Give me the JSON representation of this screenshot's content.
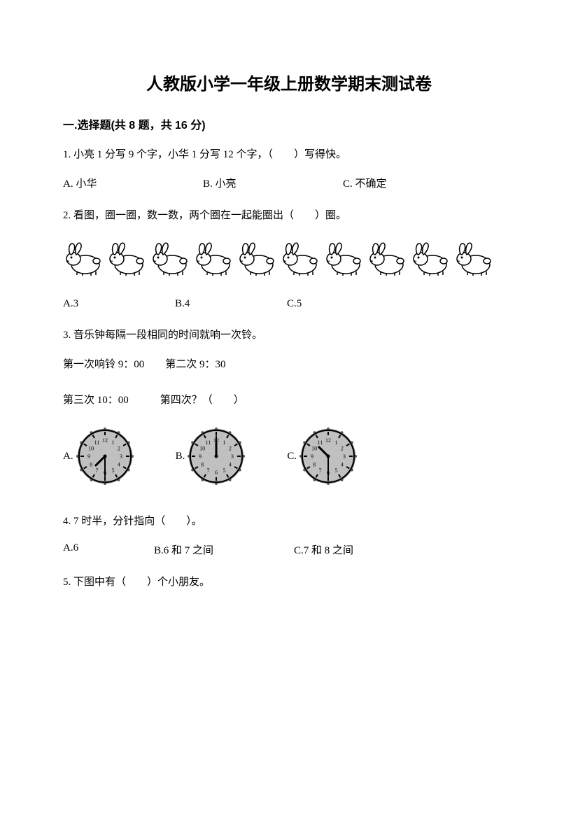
{
  "title": "人教版小学一年级上册数学期末测试卷",
  "section": {
    "label": "一.选择题(共 8 题，共 16 分)"
  },
  "q1": {
    "text": "1. 小亮 1 分写 9 个字，小华 1 分写 12 个字，（　　）写得快。",
    "a": "A. 小华",
    "b": "B. 小亮",
    "c": "C. 不确定"
  },
  "q2": {
    "text": "2. 看图，圈一圈，数一数，两个圈在一起能圈出（　　）圈。",
    "rabbit_count": 10,
    "a": "A.3",
    "b": "B.4",
    "c": "C.5"
  },
  "q3": {
    "text": "3. 音乐钟每隔一段相同的时间就响一次铃。",
    "line1": "第一次响铃 9：00　　第二次 9：30",
    "line2": "第三次 10：00　　　第四次？（　　）",
    "a": "A.",
    "b": "B.",
    "c": "C.",
    "clocks": {
      "A": {
        "hour": 7,
        "minute": 30
      },
      "B": {
        "hour": 12,
        "minute": 0
      },
      "C": {
        "hour": 10,
        "minute": 30
      }
    },
    "clock_style": {
      "face_fill": "#c0c0c0",
      "face_stroke": "#000000",
      "size": 82,
      "tick_color": "#000000",
      "hand_color": "#000000"
    }
  },
  "q4": {
    "text": "4. 7 时半，分针指向（　　）。",
    "a": "A.6",
    "b": "B.6 和 7 之间",
    "c": "C.7 和 8 之间"
  },
  "q5": {
    "text": "5. 下图中有（　　）个小朋友。"
  },
  "colors": {
    "text": "#000000",
    "background": "#ffffff"
  },
  "typography": {
    "title_fontsize": 24,
    "body_fontsize": 15,
    "section_fontsize": 16
  }
}
